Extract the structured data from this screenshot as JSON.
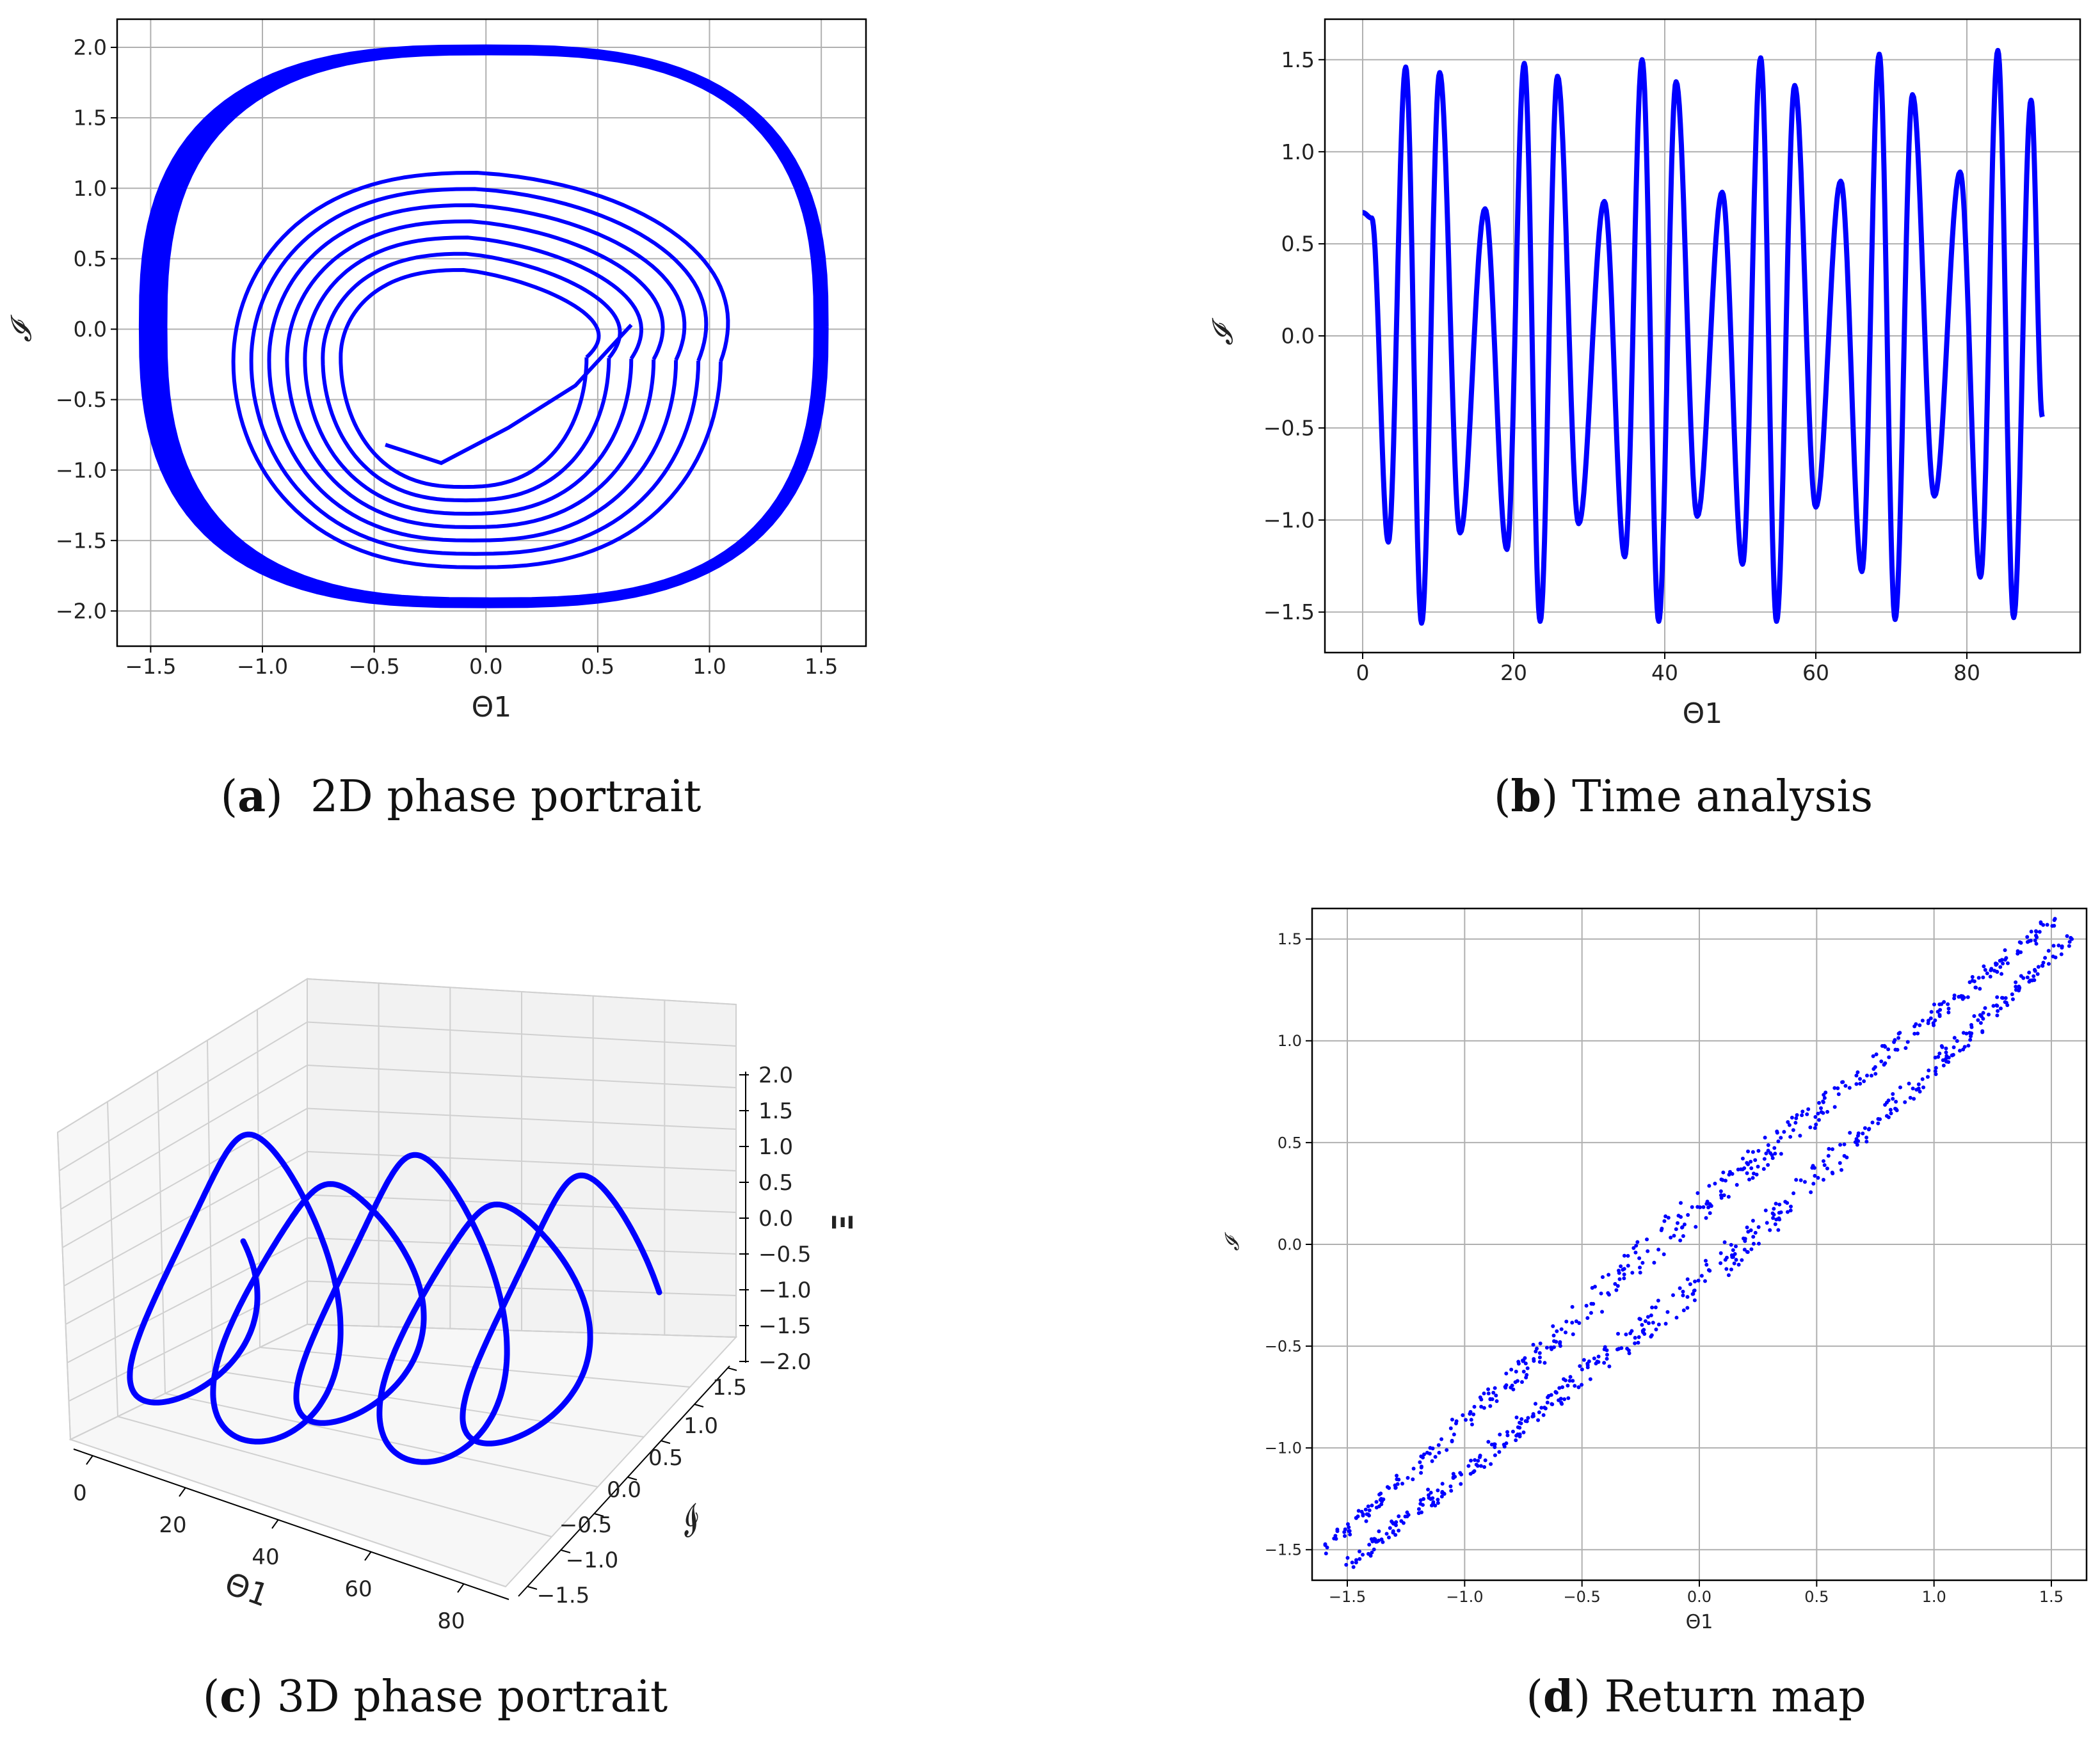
{
  "colors": {
    "line": "#0000ff",
    "grid": "#b0b0b0",
    "axis": "#000000"
  },
  "captions": {
    "a": {
      "letter": "a",
      "text": "2D phase portrait"
    },
    "b": {
      "letter": "b",
      "text": "Time analysis"
    },
    "c": {
      "letter": "c",
      "text": "3D phase portrait"
    },
    "d": {
      "letter": "d",
      "text": "Return map"
    }
  },
  "chart_data": [
    {
      "id": "a",
      "type": "line",
      "title": "",
      "xlabel": "Θ1",
      "ylabel": "𝓘",
      "xlim": [
        -1.65,
        1.7
      ],
      "ylim": [
        -2.25,
        2.2
      ],
      "xticks": [
        -1.5,
        -1.0,
        -0.5,
        0.0,
        0.5,
        1.0,
        1.5
      ],
      "yticks": [
        -2.0,
        -1.5,
        -1.0,
        -0.5,
        0.0,
        0.5,
        1.0,
        1.5,
        2.0
      ],
      "grid": true,
      "description_series": "spiralling trajectory: outer loop x≈±1.55, y≈±2.0; inner loops centered near (0,-0.2)",
      "series": [
        {
          "name": "trajectory",
          "start": [
            0.65,
            0.03
          ],
          "end": [
            -0.45,
            -0.82
          ]
        }
      ]
    },
    {
      "id": "b",
      "type": "line",
      "title": "",
      "xlabel": "Θ1",
      "ylabel": "𝓘",
      "xlim": [
        -5,
        95
      ],
      "ylim": [
        -1.72,
        1.72
      ],
      "xticks": [
        0,
        20,
        40,
        60,
        80
      ],
      "yticks": [
        -1.5,
        -1.0,
        -0.5,
        0.0,
        0.5,
        1.0,
        1.5
      ],
      "grid": true,
      "peaks": [
        {
          "t": 5.7,
          "y": 1.46
        },
        {
          "t": 10.2,
          "y": 1.43
        },
        {
          "t": 16.2,
          "y": 0.69
        },
        {
          "t": 21.4,
          "y": 1.48
        },
        {
          "t": 25.8,
          "y": 1.41
        },
        {
          "t": 32.0,
          "y": 0.73
        },
        {
          "t": 37.0,
          "y": 1.5
        },
        {
          "t": 41.5,
          "y": 1.38
        },
        {
          "t": 47.6,
          "y": 0.78
        },
        {
          "t": 52.7,
          "y": 1.51
        },
        {
          "t": 57.2,
          "y": 1.36
        },
        {
          "t": 63.3,
          "y": 0.84
        },
        {
          "t": 68.4,
          "y": 1.53
        },
        {
          "t": 72.8,
          "y": 1.31
        },
        {
          "t": 79.1,
          "y": 0.89
        },
        {
          "t": 84.1,
          "y": 1.55
        },
        {
          "t": 88.5,
          "y": 1.28
        }
      ],
      "troughs": [
        {
          "t": 3.4,
          "y": -1.12
        },
        {
          "t": 7.8,
          "y": -1.56
        },
        {
          "t": 12.9,
          "y": -1.07
        },
        {
          "t": 19.1,
          "y": -1.16
        },
        {
          "t": 23.5,
          "y": -1.55
        },
        {
          "t": 28.6,
          "y": -1.02
        },
        {
          "t": 34.7,
          "y": -1.2
        },
        {
          "t": 39.2,
          "y": -1.55
        },
        {
          "t": 44.3,
          "y": -0.98
        },
        {
          "t": 50.3,
          "y": -1.24
        },
        {
          "t": 54.8,
          "y": -1.55
        },
        {
          "t": 60.0,
          "y": -0.93
        },
        {
          "t": 66.1,
          "y": -1.28
        },
        {
          "t": 70.5,
          "y": -1.54
        },
        {
          "t": 75.7,
          "y": -0.87
        },
        {
          "t": 81.8,
          "y": -1.31
        },
        {
          "t": 86.2,
          "y": -1.53
        }
      ],
      "start": {
        "t": 0,
        "y": 0.67
      },
      "end": {
        "t": 90,
        "y": -0.44
      }
    },
    {
      "id": "c",
      "type": "line",
      "title": "",
      "xlabel": "Θ1",
      "ylabel": "𝓘",
      "zlabel": "Ξ",
      "xticks": [
        "0",
        "20",
        "40",
        "60",
        "80"
      ],
      "yticks": [
        "−1.5",
        "−1.0",
        "−0.5",
        "0.0",
        "0.5",
        "1.0",
        "1.5"
      ],
      "zticks": [
        "2.0",
        "1.5",
        "1.0",
        "0.5",
        "0.0",
        "−0.5",
        "−1.0",
        "−1.5",
        "−2.0"
      ],
      "grid": true,
      "loops": 5
    },
    {
      "id": "d",
      "type": "scatter",
      "title": "",
      "xlabel": "Θ1",
      "ylabel": "𝓘",
      "xlim": [
        -1.65,
        1.65
      ],
      "ylim": [
        -1.65,
        1.65
      ],
      "xticks": [
        -1.5,
        -1.0,
        -0.5,
        0.0,
        0.5,
        1.0,
        1.5
      ],
      "yticks": [
        -1.5,
        -1.0,
        -0.5,
        0.0,
        0.5,
        1.0,
        1.5
      ],
      "grid": true,
      "description_series": "about 900 points along the diagonal y≈x in two close bands, range -1.55 to 1.55"
    }
  ]
}
